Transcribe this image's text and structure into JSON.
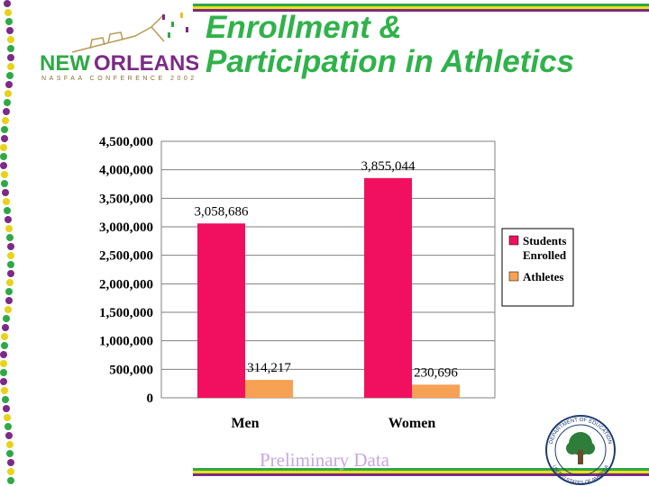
{
  "logo": {
    "word1": "NEW",
    "word2": "ORLEANS",
    "subtitle": "NASFAA CONFERENCE 2002"
  },
  "slide": {
    "title_line1": "Enrollment &",
    "title_line2": "Participation in Athletics",
    "footnote": "Preliminary Data"
  },
  "seal": {
    "top_text": "DEPARTMENT OF EDUCATION",
    "bottom_text": "UNITED STATES OF AMERICA"
  },
  "colors": {
    "title_green": "#2fb24a",
    "stripe_green": "#2fa846",
    "stripe_yellow": "#e8e21a",
    "stripe_purple": "#7b2a86",
    "students": "#f0105f",
    "athletes": "#f7a154"
  },
  "chart_data": {
    "type": "bar",
    "categories": [
      "Men",
      "Women"
    ],
    "series": [
      {
        "name": "Students Enrolled",
        "values": [
          3058686,
          3855044
        ],
        "labels": [
          "3,058,686",
          "3,855,044"
        ],
        "color": "#f0105f"
      },
      {
        "name": "Athletes",
        "values": [
          314217,
          230696
        ],
        "labels": [
          "314,217",
          "230,696"
        ],
        "color": "#f7a154"
      }
    ],
    "ylim": [
      0,
      4500000
    ],
    "yticks": [
      0,
      500000,
      1000000,
      1500000,
      2000000,
      2500000,
      3000000,
      3500000,
      4000000,
      4500000
    ],
    "ytick_labels": [
      "0",
      "500,000",
      "1,000,000",
      "1,500,000",
      "2,000,000",
      "2,500,000",
      "3,000,000",
      "3,500,000",
      "4,000,000",
      "4,500,000"
    ],
    "grid": true,
    "legend": "right",
    "legend_labels": [
      [
        "Students",
        "Enrolled"
      ],
      [
        "Athletes"
      ]
    ]
  }
}
